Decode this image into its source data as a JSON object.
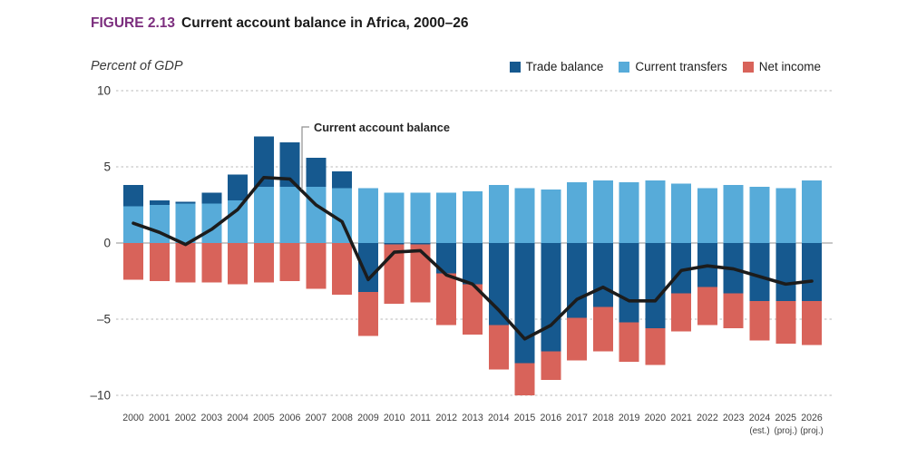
{
  "figure": {
    "label": "FIGURE 2.13",
    "title": "Current account balance in Africa, 2000–26",
    "subtitle": "Percent of GDP",
    "annotation_label": "Current account balance"
  },
  "legend": [
    {
      "id": "trade-balance",
      "label": "Trade balance",
      "color": "#16598f"
    },
    {
      "id": "current-transfers",
      "label": "Current transfers",
      "color": "#57abd9"
    },
    {
      "id": "net-income",
      "label": "Net income",
      "color": "#d8635a"
    }
  ],
  "chart_data": {
    "type": "bar",
    "subtype": "stacked-bar-with-line-overlay",
    "title": "Current account balance in Africa, 2000–26",
    "xlabel": "",
    "ylabel": "Percent of GDP",
    "ylim": [
      -10,
      10
    ],
    "grid": "horizontal-dashed",
    "legend_position": "top-right",
    "yticks": [
      {
        "value": 10,
        "label": "10"
      },
      {
        "value": 5,
        "label": "5"
      },
      {
        "value": 0,
        "label": "0"
      },
      {
        "value": -5,
        "label": "–5"
      },
      {
        "value": -10,
        "label": "–10"
      }
    ],
    "categories": [
      "2000",
      "2001",
      "2002",
      "2003",
      "2004",
      "2005",
      "2006",
      "2007",
      "2008",
      "2009",
      "2010",
      "2011",
      "2012",
      "2013",
      "2014",
      "2015",
      "2016",
      "2017",
      "2018",
      "2019",
      "2020",
      "2021",
      "2022",
      "2023",
      "2024",
      "2025",
      "2026"
    ],
    "category_notes": {
      "2024": "(est.)",
      "2025": "(proj.)",
      "2026": "(proj.)"
    },
    "series": [
      {
        "name": "Trade balance",
        "color": "#16598f",
        "values": [
          1.4,
          0.3,
          0.1,
          0.7,
          1.7,
          3.3,
          2.9,
          1.9,
          1.1,
          -3.2,
          -0.1,
          -0.1,
          -2.0,
          -2.7,
          -5.4,
          -7.9,
          -7.1,
          -4.9,
          -4.2,
          -5.2,
          -5.6,
          -3.3,
          -2.9,
          -3.3,
          -3.8,
          -3.8,
          -3.8
        ]
      },
      {
        "name": "Current transfers",
        "color": "#57abd9",
        "values": [
          2.4,
          2.5,
          2.6,
          2.6,
          2.8,
          3.7,
          3.7,
          3.7,
          3.6,
          3.6,
          3.3,
          3.3,
          3.3,
          3.4,
          3.8,
          3.6,
          3.5,
          4.0,
          4.1,
          4.0,
          4.1,
          3.9,
          3.6,
          3.8,
          3.7,
          3.6,
          4.1
        ]
      },
      {
        "name": "Net income",
        "color": "#d8635a",
        "values": [
          -2.4,
          -2.5,
          -2.6,
          -2.6,
          -2.7,
          -2.6,
          -2.5,
          -3.0,
          -3.4,
          -2.9,
          -3.9,
          -3.8,
          -3.4,
          -3.3,
          -2.9,
          -2.1,
          -1.9,
          -2.8,
          -2.9,
          -2.6,
          -2.4,
          -2.5,
          -2.5,
          -2.3,
          -2.6,
          -2.8,
          -2.9
        ]
      }
    ],
    "line_series": {
      "name": "Current account balance",
      "color": "#1c1c1c",
      "values": [
        1.3,
        0.7,
        -0.1,
        0.9,
        2.2,
        4.3,
        4.2,
        2.5,
        1.4,
        -2.4,
        -0.6,
        -0.5,
        -2.1,
        -2.7,
        -4.4,
        -6.3,
        -5.4,
        -3.7,
        -2.9,
        -3.8,
        -3.8,
        -1.8,
        -1.5,
        -1.7,
        -2.2,
        -2.7,
        -2.5
      ]
    }
  }
}
